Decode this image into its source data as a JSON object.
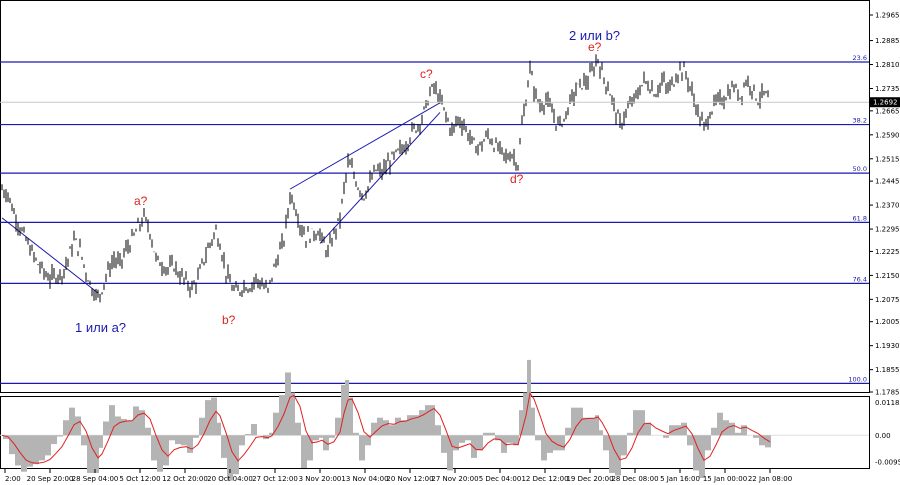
{
  "chart_data": [
    {
      "type": "candlestick",
      "instrument_price_last": "1.2692",
      "y_ticks": [
        "1.2965",
        "1.2885",
        "1.2810",
        "1.2735",
        "1.2665",
        "1.2590",
        "1.2515",
        "1.2445",
        "1.2370",
        "1.2295",
        "1.2225",
        "1.2150",
        "1.2075",
        "1.2005",
        "1.1930",
        "1.1855",
        "1.1785"
      ],
      "ylim": [
        1.1785,
        1.2965
      ],
      "x_ticks": [
        "2:00",
        "20 Sep 20:00",
        "28 Sep 04:00",
        "5 Oct 12:00",
        "12 Oct 20:00",
        "20 Oct 04:00",
        "27 Oct 12:00",
        "3 Nov 20:00",
        "13 Nov 04:00",
        "20 Nov 12:00",
        "27 Nov 20:00",
        "5 Dec 04:00",
        "12 Dec 12:00",
        "19 Dec 20:00",
        "28 Dec 08:00",
        "5 Jan 16:00",
        "15 Jan 00:00",
        "22 Jan 08:00"
      ],
      "fib_levels": [
        {
          "label": "23.6",
          "price": 1.2818
        },
        {
          "label": "38.2",
          "price": 1.2622
        },
        {
          "label": "50.0",
          "price": 1.247
        },
        {
          "label": "61.8",
          "price": 1.2316
        },
        {
          "label": "76.4",
          "price": 1.2125
        },
        {
          "label": "100.0",
          "price": 1.1812
        }
      ],
      "wave_labels": [
        {
          "text": "1 или a?",
          "style": "blue"
        },
        {
          "text": "a?",
          "style": "red"
        },
        {
          "text": "b?",
          "style": "red"
        },
        {
          "text": "c?",
          "style": "red"
        },
        {
          "text": "d?",
          "style": "red"
        },
        {
          "text": "e?",
          "style": "red"
        },
        {
          "text": "2 или b?",
          "style": "blue"
        }
      ],
      "price_path": [
        [
          0,
          1.242
        ],
        [
          6,
          1.2405
        ],
        [
          12,
          1.2345
        ],
        [
          18,
          1.23
        ],
        [
          24,
          1.226
        ],
        [
          30,
          1.222
        ],
        [
          36,
          1.2185
        ],
        [
          42,
          1.216
        ],
        [
          48,
          1.214
        ],
        [
          54,
          1.215
        ],
        [
          60,
          1.2155
        ],
        [
          66,
          1.22
        ],
        [
          72,
          1.226
        ],
        [
          78,
          1.223
        ],
        [
          84,
          1.216
        ],
        [
          90,
          1.211
        ],
        [
          96,
          1.208
        ],
        [
          100,
          1.211
        ],
        [
          106,
          1.2165
        ],
        [
          112,
          1.22
        ],
        [
          118,
          1.2185
        ],
        [
          124,
          1.223
        ],
        [
          130,
          1.226
        ],
        [
          136,
          1.23
        ],
        [
          142,
          1.233
        ],
        [
          148,
          1.229
        ],
        [
          154,
          1.22
        ],
        [
          160,
          1.2185
        ],
        [
          166,
          1.217
        ],
        [
          172,
          1.218
        ],
        [
          178,
          1.215
        ],
        [
          184,
          1.213
        ],
        [
          190,
          1.211
        ],
        [
          196,
          1.214
        ],
        [
          202,
          1.22
        ],
        [
          208,
          1.225
        ],
        [
          214,
          1.229
        ],
        [
          218,
          1.225
        ],
        [
          224,
          1.216
        ],
        [
          230,
          1.211
        ],
        [
          236,
          1.2095
        ],
        [
          242,
          1.212
        ],
        [
          248,
          1.2115
        ],
        [
          254,
          1.214
        ],
        [
          260,
          1.212
        ],
        [
          266,
          1.21
        ],
        [
          270,
          1.215
        ],
        [
          276,
          1.221
        ],
        [
          282,
          1.226
        ],
        [
          288,
          1.24
        ],
        [
          292,
          1.238
        ],
        [
          298,
          1.231
        ],
        [
          304,
          1.227
        ],
        [
          310,
          1.228
        ],
        [
          316,
          1.229
        ],
        [
          320,
          1.226
        ],
        [
          326,
          1.222
        ],
        [
          332,
          1.228
        ],
        [
          338,
          1.233
        ],
        [
          342,
          1.242
        ],
        [
          346,
          1.25
        ],
        [
          350,
          1.248
        ],
        [
          356,
          1.243
        ],
        [
          362,
          1.24
        ],
        [
          368,
          1.244
        ],
        [
          374,
          1.248
        ],
        [
          380,
          1.247
        ],
        [
          386,
          1.25
        ],
        [
          392,
          1.252
        ],
        [
          398,
          1.254
        ],
        [
          404,
          1.256
        ],
        [
          410,
          1.26
        ],
        [
          416,
          1.262
        ],
        [
          422,
          1.266
        ],
        [
          428,
          1.272
        ],
        [
          432,
          1.274
        ],
        [
          438,
          1.27
        ],
        [
          444,
          1.265
        ],
        [
          450,
          1.26
        ],
        [
          456,
          1.264
        ],
        [
          462,
          1.262
        ],
        [
          468,
          1.258
        ],
        [
          474,
          1.255
        ],
        [
          480,
          1.256
        ],
        [
          486,
          1.259
        ],
        [
          492,
          1.256
        ],
        [
          498,
          1.254
        ],
        [
          504,
          1.252
        ],
        [
          510,
          1.253
        ],
        [
          516,
          1.25
        ],
        [
          520,
          1.262
        ],
        [
          524,
          1.27
        ],
        [
          528,
          1.28
        ],
        [
          532,
          1.273
        ],
        [
          538,
          1.268
        ],
        [
          544,
          1.27
        ],
        [
          550,
          1.266
        ],
        [
          556,
          1.262
        ],
        [
          562,
          1.264
        ],
        [
          568,
          1.269
        ],
        [
          574,
          1.273
        ],
        [
          580,
          1.275
        ],
        [
          586,
          1.276
        ],
        [
          592,
          1.28
        ],
        [
          596,
          1.283
        ],
        [
          600,
          1.278
        ],
        [
          606,
          1.274
        ],
        [
          612,
          1.268
        ],
        [
          618,
          1.262
        ],
        [
          624,
          1.266
        ],
        [
          630,
          1.269
        ],
        [
          636,
          1.272
        ],
        [
          642,
          1.276
        ],
        [
          648,
          1.274
        ],
        [
          654,
          1.272
        ],
        [
          660,
          1.276
        ],
        [
          666,
          1.273
        ],
        [
          672,
          1.276
        ],
        [
          678,
          1.28
        ],
        [
          684,
          1.278
        ],
        [
          690,
          1.272
        ],
        [
          696,
          1.266
        ],
        [
          702,
          1.261
        ],
        [
          708,
          1.266
        ],
        [
          714,
          1.269
        ],
        [
          720,
          1.27
        ],
        [
          726,
          1.272
        ],
        [
          732,
          1.274
        ],
        [
          738,
          1.271
        ],
        [
          744,
          1.276
        ],
        [
          750,
          1.274
        ],
        [
          756,
          1.27
        ],
        [
          762,
          1.272
        ],
        [
          768,
          1.2692
        ]
      ],
      "macd": {
        "y_ticks": [
          "0.01183",
          "0.00",
          "-0.00959"
        ],
        "ylim": [
          -0.011,
          0.013
        ],
        "signal_color": "#e02020",
        "hist_color": "#b4b4b4"
      },
      "colors": {
        "fib_line": "#1a1ab0",
        "price_line": "#000000",
        "grid": "#c8c8c8",
        "badge": "#000000"
      }
    }
  ]
}
